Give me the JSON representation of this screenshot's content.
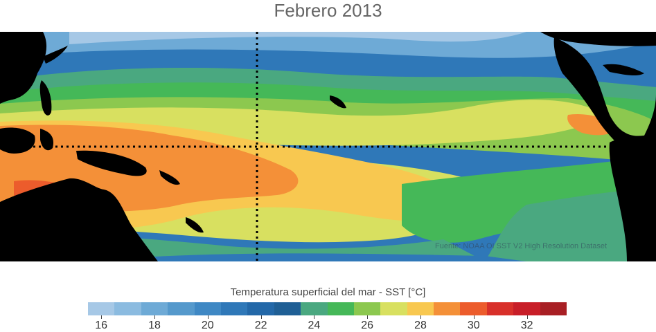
{
  "title": "Febrero 2013",
  "credit": "Fuente: NOAA OI SST V2 High Resolution Dataset",
  "colorbar": {
    "title": "Temperatura superficial del mar - SST  [°C]",
    "colors": [
      "#a6c8e6",
      "#8bbbe0",
      "#6eaad6",
      "#5599cc",
      "#3f88c4",
      "#2f78b8",
      "#2368a8",
      "#1f5f95",
      "#4aa880",
      "#45b858",
      "#8cc84f",
      "#d8e060",
      "#f8c850",
      "#f49038",
      "#ec5c2c",
      "#d8302a",
      "#c81e28",
      "#a81f24"
    ],
    "tick_labels": [
      "16",
      "18",
      "20",
      "22",
      "24",
      "26",
      "28",
      "30",
      "32"
    ]
  },
  "map": {
    "land_color": "#000000",
    "reference_lines": [
      "equator",
      "180° meridian"
    ]
  }
}
